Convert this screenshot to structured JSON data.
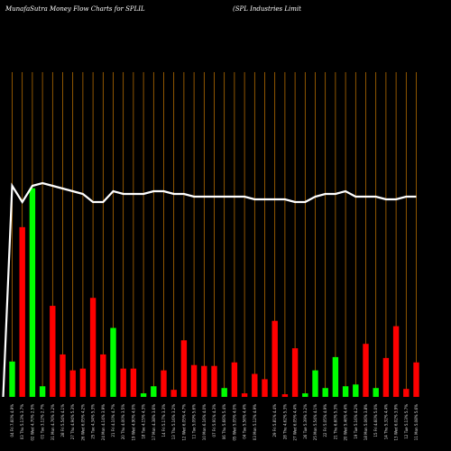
{
  "header": {
    "title_left": "MunafaSutra  Money Flow  Charts for SPLIL",
    "title_right": "(SPL  Industries Limit"
  },
  "colors": {
    "background": "#000000",
    "inflow": "#00ff00",
    "outflow": "#ff0000",
    "grid": "#cc7a00",
    "line": "#ffffff"
  },
  "chart_data": {
    "type": "bar",
    "categories": [
      "04 Fri 7.60% 4.9%",
      "03 Thu 5.13% 3.7%",
      "02 Wed 4.70% 2.5%",
      "01 Tue 3.12% 2.7%",
      "31 Mon 4.76% 3.2%",
      "28 Fri 5.54% 4.1%",
      "27 Thu 4.94% 5.3%",
      "26 Wed 6.05% 4.2%",
      "25 Tue 4.34% 5.3%",
      "24 Mon 4.14% 3.9%",
      "21 Fri 4.10% 4.7%",
      "20 Thu 4.00% 3.5%",
      "19 Wed 4.90% 4.0%",
      "18 Tue 4.15% 4.3%",
      "17 Mon 4.38% 3.6%",
      "14 Fri 5.17% 3.3%",
      "13 Thu 5.16% 3.2%",
      "12 Wed 6.05% 4.7%",
      "11 Tue 5.09% 5.6%",
      "10 Mon 6.16% 4.0%",
      "07 Fri 5.91% 4.3%",
      "06 Thu 5.66% 5.4%",
      "05 Wed 5.05% 4.0%",
      "04 Tue 5.56% 4.4%",
      "03 Mon 5.12% 4.9%",
      "",
      "29 Fri 5.81% 4.4%",
      "28 Thu 4.62% 5.3%",
      "27 Wed 6.05% 4.4%",
      "26 Tue 5.39% 3.2%",
      "25 Mon 5.54% 4.1%",
      "22 Fri 5.05% 4.9%",
      "21 Thu 6.60% 5.3%",
      "20 Wed 5.46% 4.4%",
      "19 Tue 5.16% 4.2%",
      "18 Mon 5.06% 3.8%",
      "15 Fri 4.60% 5.0%",
      "14 Thu 5.32% 4.4%",
      "13 Wed 6.02% 3.9%",
      "12 Tue 5.13% 5.7%",
      "11 Mon 5.08% 5.6%"
    ],
    "series": [
      {
        "values": [
          40,
          192,
          236,
          12,
          103,
          48,
          30,
          32,
          112,
          48,
          78,
          32,
          32,
          4,
          12,
          30,
          8,
          64,
          36,
          35,
          35,
          10,
          39,
          4,
          26,
          20,
          86,
          3,
          55,
          4,
          30,
          10,
          45,
          12,
          14,
          60,
          10,
          44,
          80,
          9,
          39
        ],
        "flow": [
          "in",
          "out",
          "in",
          "in",
          "out",
          "out",
          "out",
          "out",
          "out",
          "out",
          "in",
          "out",
          "out",
          "in",
          "in",
          "out",
          "out",
          "out",
          "out",
          "out",
          "out",
          "in",
          "out",
          "out",
          "out",
          "out",
          "out",
          "out",
          "out",
          "in",
          "in",
          "in",
          "in",
          "in",
          "in",
          "out",
          "in",
          "out",
          "out",
          "out",
          "out"
        ]
      },
      {
        "line_values": [
          78,
          72,
          78,
          79,
          78,
          77,
          76,
          75,
          72,
          72,
          76,
          75,
          75,
          75,
          76,
          76,
          75,
          75,
          74,
          74,
          74,
          74,
          74,
          74,
          73,
          73,
          73,
          73,
          72,
          72,
          74,
          75,
          75,
          76,
          74,
          74,
          74,
          73,
          73,
          74,
          74
        ]
      }
    ],
    "xlabel": "",
    "ylabel": "",
    "grid": true
  }
}
